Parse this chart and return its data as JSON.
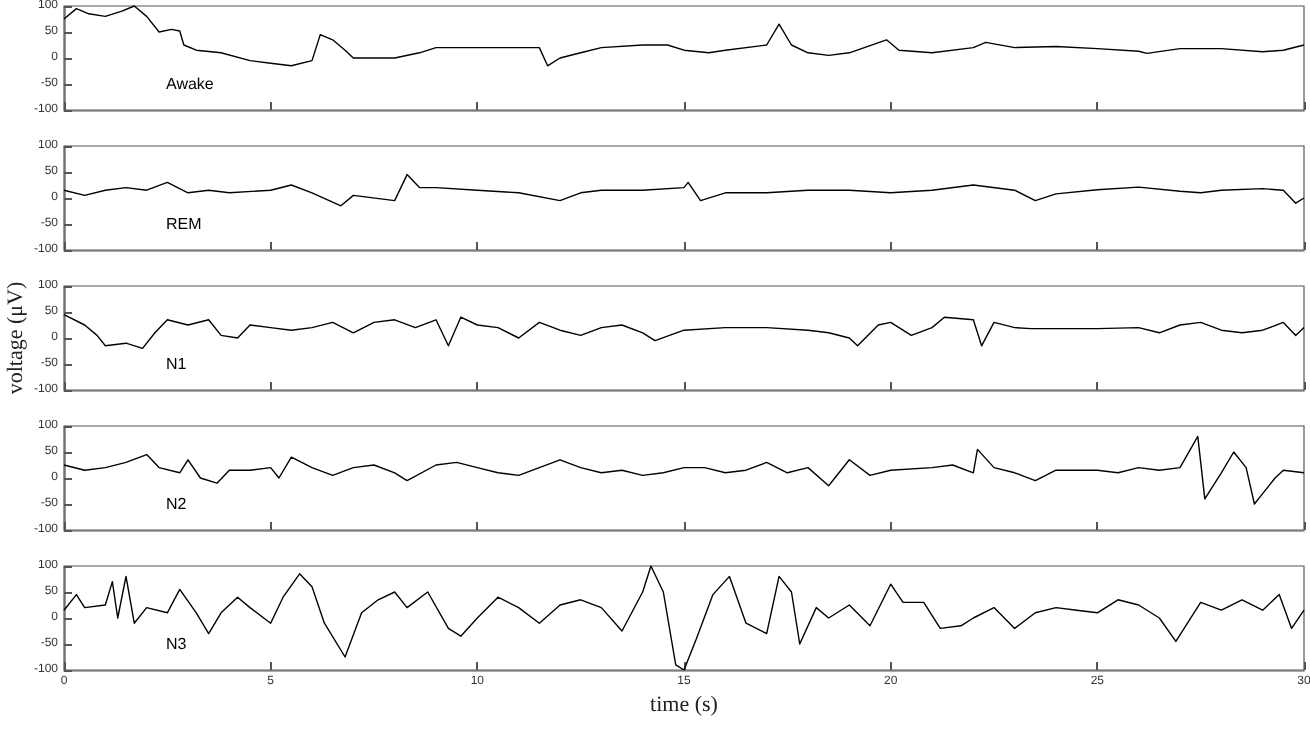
{
  "chart_data": [
    {
      "type": "line",
      "color": "#000000",
      "xlim": [
        0,
        30
      ],
      "xticks": [
        0,
        5,
        10,
        15,
        20,
        25,
        30
      ],
      "ylim": [
        -100,
        100
      ],
      "yticks": [
        -100,
        -50,
        0,
        50,
        100
      ],
      "tick_labels": "y",
      "grid": false,
      "annotations": [
        "Awake"
      ],
      "x": [
        0,
        0.3,
        0.6,
        1,
        1.4,
        1.7,
        2,
        2.3,
        2.6,
        2.8,
        2.9,
        3.2,
        3.8,
        4.5,
        5,
        5.5,
        6,
        6.2,
        6.5,
        6.8,
        7,
        8,
        8.6,
        9,
        10,
        11,
        11.5,
        11.7,
        12,
        12.5,
        13,
        14,
        14.6,
        15,
        15.6,
        16,
        17,
        17.3,
        17.6,
        18,
        18.5,
        19,
        19.9,
        20.2,
        21,
        22,
        22.3,
        23,
        24,
        25,
        26,
        26.2,
        27,
        28,
        29,
        29.5,
        30
      ],
      "values": [
        75,
        95,
        85,
        80,
        90,
        100,
        80,
        50,
        55,
        52,
        25,
        15,
        10,
        -5,
        -10,
        -15,
        -5,
        45,
        35,
        15,
        0,
        0,
        10,
        20,
        20,
        20,
        20,
        -15,
        0,
        10,
        20,
        25,
        25,
        15,
        10,
        15,
        25,
        65,
        25,
        10,
        5,
        10,
        35,
        15,
        10,
        20,
        30,
        20,
        22,
        18,
        13,
        9,
        18,
        18,
        12,
        15,
        25
      ]
    },
    {
      "type": "line",
      "color": "#000000",
      "xlim": [
        0,
        30
      ],
      "xticks": [
        0,
        5,
        10,
        15,
        20,
        25,
        30
      ],
      "ylim": [
        -100,
        100
      ],
      "yticks": [
        -100,
        -50,
        0,
        50,
        100
      ],
      "tick_labels": "y",
      "grid": false,
      "annotations": [
        "REM"
      ],
      "x": [
        0,
        0.5,
        1,
        1.5,
        2,
        2.5,
        3,
        3.5,
        4,
        5,
        5.5,
        6,
        6.7,
        7,
        8,
        8.3,
        8.6,
        9,
        10,
        11,
        12,
        12.5,
        13,
        14,
        15,
        15.1,
        15.4,
        16,
        17,
        18,
        19,
        20,
        21,
        22,
        23,
        23.5,
        24,
        25,
        26,
        27,
        27.5,
        28,
        29,
        29.5,
        29.8,
        30
      ],
      "values": [
        15,
        5,
        15,
        20,
        15,
        30,
        10,
        15,
        10,
        15,
        25,
        10,
        -15,
        5,
        -5,
        45,
        20,
        20,
        15,
        10,
        -5,
        10,
        15,
        15,
        20,
        30,
        -5,
        10,
        10,
        15,
        15,
        10,
        15,
        25,
        15,
        -5,
        8,
        16,
        21,
        13,
        10,
        15,
        18,
        15,
        -10,
        0
      ]
    },
    {
      "type": "line",
      "color": "#000000",
      "xlim": [
        0,
        30
      ],
      "xticks": [
        0,
        5,
        10,
        15,
        20,
        25,
        30
      ],
      "ylim": [
        -100,
        100
      ],
      "yticks": [
        -100,
        -50,
        0,
        50,
        100
      ],
      "tick_labels": "y",
      "grid": false,
      "ylabel": "voltage (μV)",
      "annotations": [
        "N1"
      ],
      "x": [
        0,
        0.5,
        0.8,
        1,
        1.5,
        1.9,
        2.2,
        2.5,
        3,
        3.5,
        3.8,
        4.2,
        4.5,
        5,
        5.5,
        6,
        6.5,
        7,
        7.5,
        8,
        8.5,
        9,
        9.3,
        9.6,
        10,
        10.5,
        11,
        11.5,
        12,
        12.5,
        13,
        13.5,
        14,
        14.3,
        15,
        16,
        17,
        18,
        18.5,
        19,
        19.2,
        19.7,
        20,
        20.5,
        21,
        21.3,
        22,
        22.2,
        22.5,
        23,
        23.4,
        24,
        24.5,
        25,
        26,
        26.5,
        27,
        27.5,
        28,
        28.5,
        29,
        29.5,
        29.8,
        30
      ],
      "values": [
        45,
        25,
        5,
        -15,
        -10,
        -20,
        10,
        35,
        25,
        35,
        5,
        0,
        25,
        20,
        15,
        20,
        30,
        10,
        30,
        35,
        20,
        35,
        -15,
        40,
        25,
        20,
        0,
        30,
        15,
        5,
        20,
        25,
        10,
        -5,
        15,
        20,
        20,
        15,
        10,
        0,
        -15,
        25,
        30,
        5,
        20,
        40,
        35,
        -15,
        30,
        20,
        18,
        18,
        18,
        18,
        20,
        10,
        25,
        30,
        15,
        10,
        15,
        30,
        5,
        20
      ]
    },
    {
      "type": "line",
      "color": "#000000",
      "xlim": [
        0,
        30
      ],
      "xticks": [
        0,
        5,
        10,
        15,
        20,
        25,
        30
      ],
      "ylim": [
        -100,
        100
      ],
      "yticks": [
        -100,
        -50,
        0,
        50,
        100
      ],
      "tick_labels": "y",
      "grid": false,
      "annotations": [
        "N2"
      ],
      "x": [
        0,
        0.5,
        1,
        1.5,
        2,
        2.3,
        2.8,
        3,
        3.3,
        3.7,
        4,
        4.5,
        5,
        5.2,
        5.5,
        6,
        6.5,
        7,
        7.5,
        8,
        8.3,
        9,
        9.5,
        10,
        10.5,
        11,
        11.5,
        12,
        12.5,
        13,
        13.5,
        14,
        14.5,
        15,
        15.5,
        16,
        16.5,
        17,
        17.5,
        18,
        18.5,
        19,
        19.5,
        20,
        21,
        21.5,
        22,
        22.1,
        22.5,
        23,
        23.5,
        24,
        25,
        25.5,
        26,
        26.5,
        27,
        27.43,
        27.6,
        28,
        28.3,
        28.6,
        28.8,
        29,
        29.3,
        29.5,
        30
      ],
      "values": [
        25,
        15,
        20,
        30,
        45,
        20,
        10,
        35,
        0,
        -10,
        15,
        15,
        20,
        0,
        40,
        20,
        5,
        20,
        25,
        10,
        -5,
        25,
        30,
        20,
        10,
        5,
        20,
        35,
        20,
        10,
        15,
        5,
        10,
        20,
        20,
        10,
        15,
        30,
        10,
        20,
        -15,
        35,
        5,
        15,
        20,
        25,
        10,
        55,
        20,
        10,
        -5,
        15,
        15,
        10,
        20,
        15,
        20,
        80,
        -40,
        10,
        50,
        20,
        -50,
        -30,
        0,
        15,
        10
      ]
    },
    {
      "type": "line",
      "color": "#000000",
      "xlim": [
        0,
        30
      ],
      "xticks": [
        0,
        5,
        10,
        15,
        20,
        25,
        30
      ],
      "ylim": [
        -100,
        100
      ],
      "yticks": [
        -100,
        -50,
        0,
        50,
        100
      ],
      "grid": false,
      "xlabel": "time (s)",
      "annotations": [
        "N3"
      ],
      "x": [
        0,
        0.3,
        0.5,
        1,
        1.17,
        1.3,
        1.5,
        1.7,
        2,
        2.5,
        2.8,
        3.2,
        3.5,
        3.8,
        4.2,
        4.5,
        5,
        5.3,
        5.7,
        6,
        6.3,
        6.8,
        7.2,
        7.6,
        8,
        8.3,
        8.8,
        9.3,
        9.6,
        10,
        10.5,
        11,
        11.5,
        12,
        12.5,
        13,
        13.5,
        14,
        14.2,
        14.5,
        14.8,
        15,
        15.3,
        15.7,
        16.1,
        16.5,
        17,
        17.3,
        17.6,
        17.8,
        18.2,
        18.5,
        19,
        19.5,
        20,
        20.3,
        20.8,
        21.2,
        21.7,
        22,
        22.5,
        23,
        23.5,
        24,
        24.5,
        25,
        25.5,
        26,
        26.5,
        26.9,
        27.5,
        28,
        28.5,
        29,
        29.4,
        29.7,
        30
      ],
      "values": [
        15,
        45,
        20,
        25,
        70,
        0,
        80,
        -10,
        20,
        10,
        55,
        10,
        -30,
        10,
        40,
        20,
        -10,
        40,
        85,
        60,
        -10,
        -75,
        10,
        35,
        50,
        20,
        50,
        -20,
        -35,
        0,
        40,
        20,
        -10,
        25,
        35,
        20,
        -25,
        50,
        100,
        50,
        -90,
        -100,
        -40,
        45,
        80,
        -10,
        -30,
        80,
        50,
        -50,
        20,
        0,
        25,
        -15,
        65,
        30,
        30,
        -20,
        -15,
        0,
        20,
        -20,
        10,
        20,
        15,
        10,
        35,
        25,
        0,
        -45,
        30,
        15,
        35,
        15,
        45,
        -20,
        15
      ]
    }
  ]
}
